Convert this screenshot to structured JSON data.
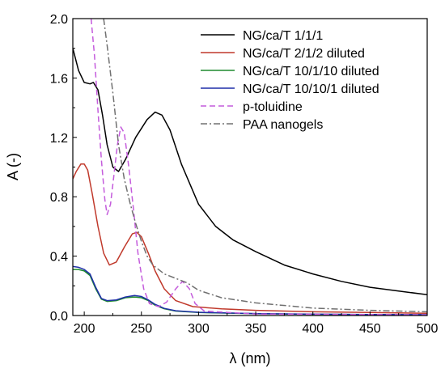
{
  "chart_data": {
    "type": "line",
    "xlabel": "λ (nm)",
    "ylabel": "A (-)",
    "xlim": [
      190,
      500
    ],
    "ylim": [
      0.0,
      2.0
    ],
    "x_ticks": [
      200,
      250,
      300,
      350,
      400,
      450,
      500
    ],
    "y_ticks": [
      0.0,
      0.4,
      0.8,
      1.2,
      1.6,
      2.0
    ],
    "x_tick_labels": [
      "200",
      "250",
      "300",
      "350",
      "400",
      "450",
      "500"
    ],
    "y_tick_labels": [
      "0.0",
      "0.4",
      "0.8",
      "1.2",
      "1.6",
      "2.0"
    ],
    "legend_position": "top-right",
    "grid": false,
    "series": [
      {
        "name": "NG/ca/T 1/1/1",
        "color": "#000000",
        "dash": "solid",
        "points": [
          [
            190,
            1.8
          ],
          [
            195,
            1.65
          ],
          [
            200,
            1.57
          ],
          [
            205,
            1.56
          ],
          [
            208,
            1.57
          ],
          [
            212,
            1.52
          ],
          [
            216,
            1.35
          ],
          [
            220,
            1.15
          ],
          [
            225,
            1.0
          ],
          [
            230,
            0.97
          ],
          [
            236,
            1.05
          ],
          [
            245,
            1.2
          ],
          [
            255,
            1.32
          ],
          [
            262,
            1.37
          ],
          [
            268,
            1.35
          ],
          [
            275,
            1.25
          ],
          [
            285,
            1.02
          ],
          [
            300,
            0.75
          ],
          [
            315,
            0.6
          ],
          [
            330,
            0.51
          ],
          [
            350,
            0.43
          ],
          [
            375,
            0.34
          ],
          [
            400,
            0.28
          ],
          [
            425,
            0.23
          ],
          [
            450,
            0.19
          ],
          [
            475,
            0.165
          ],
          [
            500,
            0.14
          ]
        ]
      },
      {
        "name": "NG/ca/T 2/1/2 diluted",
        "color": "#c0392b",
        "dash": "solid",
        "points": [
          [
            190,
            0.92
          ],
          [
            193,
            0.97
          ],
          [
            197,
            1.02
          ],
          [
            200,
            1.02
          ],
          [
            203,
            0.98
          ],
          [
            207,
            0.82
          ],
          [
            212,
            0.6
          ],
          [
            217,
            0.42
          ],
          [
            222,
            0.34
          ],
          [
            228,
            0.36
          ],
          [
            235,
            0.46
          ],
          [
            242,
            0.55
          ],
          [
            246,
            0.56
          ],
          [
            250,
            0.53
          ],
          [
            256,
            0.42
          ],
          [
            262,
            0.3
          ],
          [
            270,
            0.18
          ],
          [
            280,
            0.1
          ],
          [
            295,
            0.06
          ],
          [
            320,
            0.045
          ],
          [
            350,
            0.035
          ],
          [
            400,
            0.025
          ],
          [
            450,
            0.02
          ],
          [
            500,
            0.015
          ]
        ]
      },
      {
        "name": "NG/ca/T 10/1/10 diluted",
        "color": "#1e8a2e",
        "dash": "solid",
        "points": [
          [
            190,
            0.31
          ],
          [
            195,
            0.31
          ],
          [
            200,
            0.3
          ],
          [
            205,
            0.27
          ],
          [
            210,
            0.18
          ],
          [
            215,
            0.11
          ],
          [
            220,
            0.095
          ],
          [
            228,
            0.1
          ],
          [
            236,
            0.12
          ],
          [
            244,
            0.125
          ],
          [
            250,
            0.12
          ],
          [
            256,
            0.1
          ],
          [
            262,
            0.07
          ],
          [
            270,
            0.045
          ],
          [
            280,
            0.03
          ],
          [
            300,
            0.02
          ],
          [
            350,
            0.012
          ],
          [
            400,
            0.008
          ],
          [
            450,
            0.006
          ],
          [
            500,
            0.005
          ]
        ]
      },
      {
        "name": "NG/ca/T 10/10/1 diluted",
        "color": "#1f2fa8",
        "dash": "solid",
        "points": [
          [
            190,
            0.33
          ],
          [
            195,
            0.325
          ],
          [
            200,
            0.31
          ],
          [
            205,
            0.28
          ],
          [
            210,
            0.19
          ],
          [
            215,
            0.115
          ],
          [
            220,
            0.1
          ],
          [
            228,
            0.105
          ],
          [
            236,
            0.125
          ],
          [
            244,
            0.135
          ],
          [
            250,
            0.128
          ],
          [
            256,
            0.105
          ],
          [
            262,
            0.075
          ],
          [
            270,
            0.048
          ],
          [
            280,
            0.032
          ],
          [
            300,
            0.022
          ],
          [
            350,
            0.013
          ],
          [
            400,
            0.009
          ],
          [
            450,
            0.007
          ],
          [
            500,
            0.006
          ]
        ]
      },
      {
        "name": "p-toluidine",
        "color": "#c45bdc",
        "dash": "dashed",
        "points": [
          [
            206,
            2.0
          ],
          [
            209,
            1.75
          ],
          [
            212,
            1.38
          ],
          [
            215,
            1.05
          ],
          [
            218,
            0.78
          ],
          [
            220,
            0.68
          ],
          [
            223,
            0.75
          ],
          [
            226,
            0.95
          ],
          [
            229,
            1.15
          ],
          [
            232,
            1.27
          ],
          [
            235,
            1.23
          ],
          [
            239,
            1.0
          ],
          [
            243,
            0.72
          ],
          [
            247,
            0.42
          ],
          [
            252,
            0.18
          ],
          [
            257,
            0.08
          ],
          [
            265,
            0.06
          ],
          [
            272,
            0.09
          ],
          [
            280,
            0.18
          ],
          [
            286,
            0.23
          ],
          [
            292,
            0.18
          ],
          [
            297,
            0.08
          ],
          [
            305,
            0.03
          ],
          [
            350,
            0.01
          ],
          [
            400,
            0.008
          ],
          [
            500,
            0.005
          ]
        ]
      },
      {
        "name": "PAA nanogels",
        "color": "#707070",
        "dash": "dashdot",
        "points": [
          [
            217,
            2.0
          ],
          [
            220,
            1.82
          ],
          [
            225,
            1.5
          ],
          [
            230,
            1.15
          ],
          [
            235,
            0.92
          ],
          [
            240,
            0.76
          ],
          [
            245,
            0.62
          ],
          [
            250,
            0.5
          ],
          [
            255,
            0.4
          ],
          [
            260,
            0.34
          ],
          [
            270,
            0.28
          ],
          [
            280,
            0.25
          ],
          [
            290,
            0.22
          ],
          [
            300,
            0.17
          ],
          [
            320,
            0.12
          ],
          [
            350,
            0.085
          ],
          [
            400,
            0.05
          ],
          [
            450,
            0.035
          ],
          [
            500,
            0.025
          ]
        ]
      }
    ]
  }
}
